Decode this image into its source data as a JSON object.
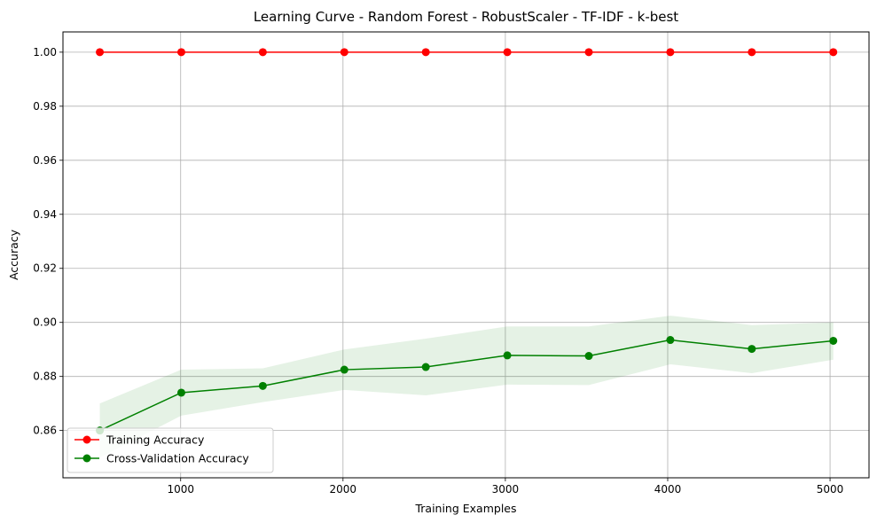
{
  "chart_data": {
    "type": "line",
    "title": "Learning Curve - Random Forest - RobustScaler - TF-IDF - k-best",
    "xlabel": "Training Examples",
    "ylabel": "Accuracy",
    "xlim": [
      275,
      5240
    ],
    "ylim": [
      0.8425,
      1.0075
    ],
    "xticks": [
      1000,
      2000,
      3000,
      4000,
      5000
    ],
    "xtick_labels": [
      "1000",
      "2000",
      "3000",
      "4000",
      "5000"
    ],
    "yticks": [
      0.86,
      0.88,
      0.9,
      0.92,
      0.94,
      0.96,
      0.98,
      1.0
    ],
    "ytick_labels": [
      "0.86",
      "0.88",
      "0.90",
      "0.92",
      "0.94",
      "0.96",
      "0.98",
      "1.00"
    ],
    "grid": true,
    "legend_position": "lower-left",
    "x": [
      502,
      1004,
      1506,
      2008,
      2510,
      3012,
      3514,
      4016,
      4518,
      5020
    ],
    "series": [
      {
        "name": "Training Accuracy",
        "color": "#ff0000",
        "marker": "circle",
        "values": [
          1.0,
          1.0,
          1.0,
          1.0,
          1.0,
          1.0,
          1.0,
          1.0,
          1.0,
          1.0
        ],
        "band_upper": [
          1.0,
          1.0,
          1.0,
          1.0,
          1.0,
          1.0,
          1.0,
          1.0,
          1.0,
          1.0
        ],
        "band_lower": [
          1.0,
          1.0,
          1.0,
          1.0,
          1.0,
          1.0,
          1.0,
          1.0,
          1.0,
          1.0
        ]
      },
      {
        "name": "Cross-Validation Accuracy",
        "color": "#008000",
        "marker": "circle",
        "values": [
          0.86,
          0.874,
          0.8765,
          0.8825,
          0.8835,
          0.8878,
          0.8876,
          0.8935,
          0.8902,
          0.8932
        ],
        "band_upper": [
          0.87,
          0.8825,
          0.883,
          0.89,
          0.894,
          0.8985,
          0.8985,
          0.9025,
          0.899,
          0.9
        ],
        "band_lower": [
          0.85,
          0.8655,
          0.8705,
          0.875,
          0.873,
          0.877,
          0.8768,
          0.8845,
          0.8812,
          0.8862
        ]
      }
    ]
  }
}
